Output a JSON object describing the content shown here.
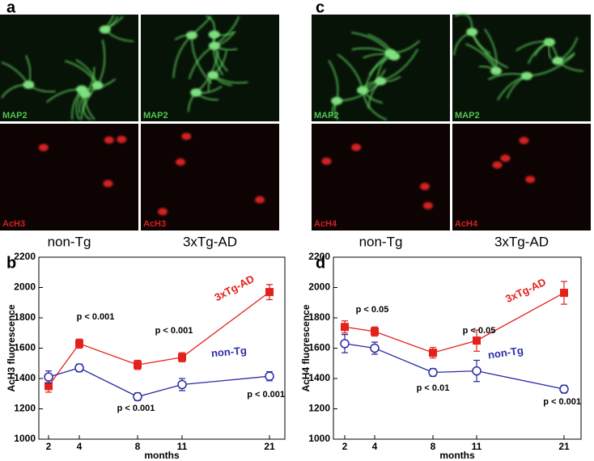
{
  "figure": {
    "labels": [
      "a",
      "b",
      "c",
      "d"
    ],
    "left_images": {
      "top_labels": [
        "MAP2",
        "MAP2"
      ],
      "bottom_labels": [
        "AcH3",
        "AcH3"
      ],
      "captions": [
        "non-Tg",
        "3xTg-AD"
      ]
    },
    "right_images": {
      "top_labels": [
        "MAP2",
        "MAP2"
      ],
      "bottom_labels": [
        "AcH4",
        "AcH4"
      ],
      "captions": [
        "non-Tg",
        "3xTg-AD"
      ]
    }
  },
  "chart_data": [
    {
      "type": "line",
      "y_label": "AcH3 fluorescence",
      "x_label": "months",
      "categories": [
        "2",
        "4",
        "8",
        "11",
        "21"
      ],
      "series": [
        {
          "name": "3xTg-AD",
          "color": "#e3211b",
          "marker": "square",
          "values": [
            1350,
            1630,
            1490,
            1540,
            1970
          ],
          "errors": [
            40,
            30,
            30,
            30,
            50
          ]
        },
        {
          "name": "non-Tg",
          "color": "#2a2aa8",
          "marker": "open-circle",
          "values": [
            1410,
            1470,
            1280,
            1360,
            1415
          ],
          "errors": [
            40,
            25,
            25,
            40,
            30
          ]
        }
      ],
      "ylim": [
        1000,
        2200
      ],
      "yticks": [
        1000,
        1200,
        1400,
        1600,
        1800,
        2000,
        2200
      ],
      "annotations": [
        "p < 0.001",
        "p < 0.001",
        "p < 0.001",
        "p < 0.001"
      ]
    },
    {
      "type": "line",
      "y_label": "AcH4 fluorescence",
      "x_label": "months",
      "categories": [
        "2",
        "4",
        "8",
        "11",
        "21"
      ],
      "series": [
        {
          "name": "3xTg-AD",
          "color": "#e3211b",
          "marker": "square",
          "values": [
            1740,
            1710,
            1570,
            1650,
            1965
          ],
          "errors": [
            40,
            30,
            35,
            70,
            75
          ]
        },
        {
          "name": "non-Tg",
          "color": "#2a2aa8",
          "marker": "open-circle",
          "values": [
            1630,
            1600,
            1440,
            1450,
            1330
          ],
          "errors": [
            60,
            40,
            25,
            70,
            25
          ]
        }
      ],
      "ylim": [
        1000,
        2200
      ],
      "yticks": [
        1000,
        1200,
        1400,
        1600,
        1800,
        2000,
        2200
      ],
      "annotations": [
        "p < 0.05",
        "p < 0.01",
        "p < 0.05",
        "p < 0.001"
      ]
    }
  ]
}
